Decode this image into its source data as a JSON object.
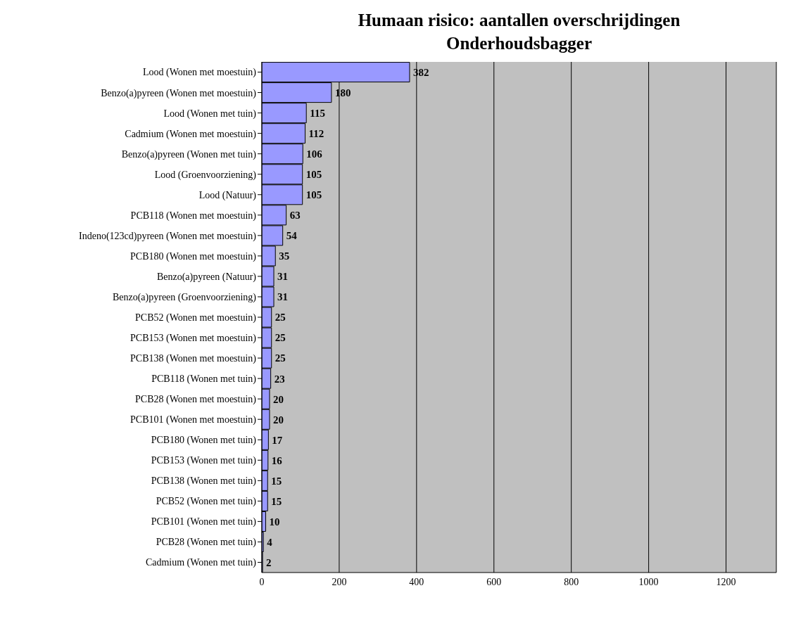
{
  "chart_data": {
    "type": "bar",
    "orientation": "horizontal",
    "title": "Humaan risico: aantallen overschrijdingen",
    "subtitle": "Onderhoudsbagger",
    "categories": [
      "Lood (Wonen met moestuin)",
      "Benzo(a)pyreen (Wonen met moestuin)",
      "Lood (Wonen met tuin)",
      "Cadmium (Wonen met moestuin)",
      "Benzo(a)pyreen (Wonen met tuin)",
      "Lood (Groenvoorziening)",
      "Lood (Natuur)",
      "PCB118 (Wonen met moestuin)",
      "Indeno(123cd)pyreen (Wonen met moestuin)",
      "PCB180 (Wonen met moestuin)",
      "Benzo(a)pyreen (Natuur)",
      "Benzo(a)pyreen (Groenvoorziening)",
      "PCB52 (Wonen met moestuin)",
      "PCB153 (Wonen met moestuin)",
      "PCB138 (Wonen met moestuin)",
      "PCB118 (Wonen met tuin)",
      "PCB28 (Wonen met moestuin)",
      "PCB101 (Wonen met moestuin)",
      "PCB180 (Wonen met tuin)",
      "PCB153 (Wonen met tuin)",
      "PCB138 (Wonen met tuin)",
      "PCB52 (Wonen met tuin)",
      "PCB101 (Wonen met tuin)",
      "PCB28 (Wonen met tuin)",
      "Cadmium (Wonen met tuin)"
    ],
    "values": [
      382,
      180,
      115,
      112,
      106,
      105,
      105,
      63,
      54,
      35,
      31,
      31,
      25,
      25,
      25,
      23,
      20,
      20,
      17,
      16,
      15,
      15,
      10,
      4,
      2
    ],
    "color": "#9999ff",
    "xlim": [
      0,
      1330
    ],
    "xticks": [
      0,
      200,
      400,
      600,
      800,
      1000,
      1200
    ],
    "grid": "x",
    "data_labels": true
  }
}
